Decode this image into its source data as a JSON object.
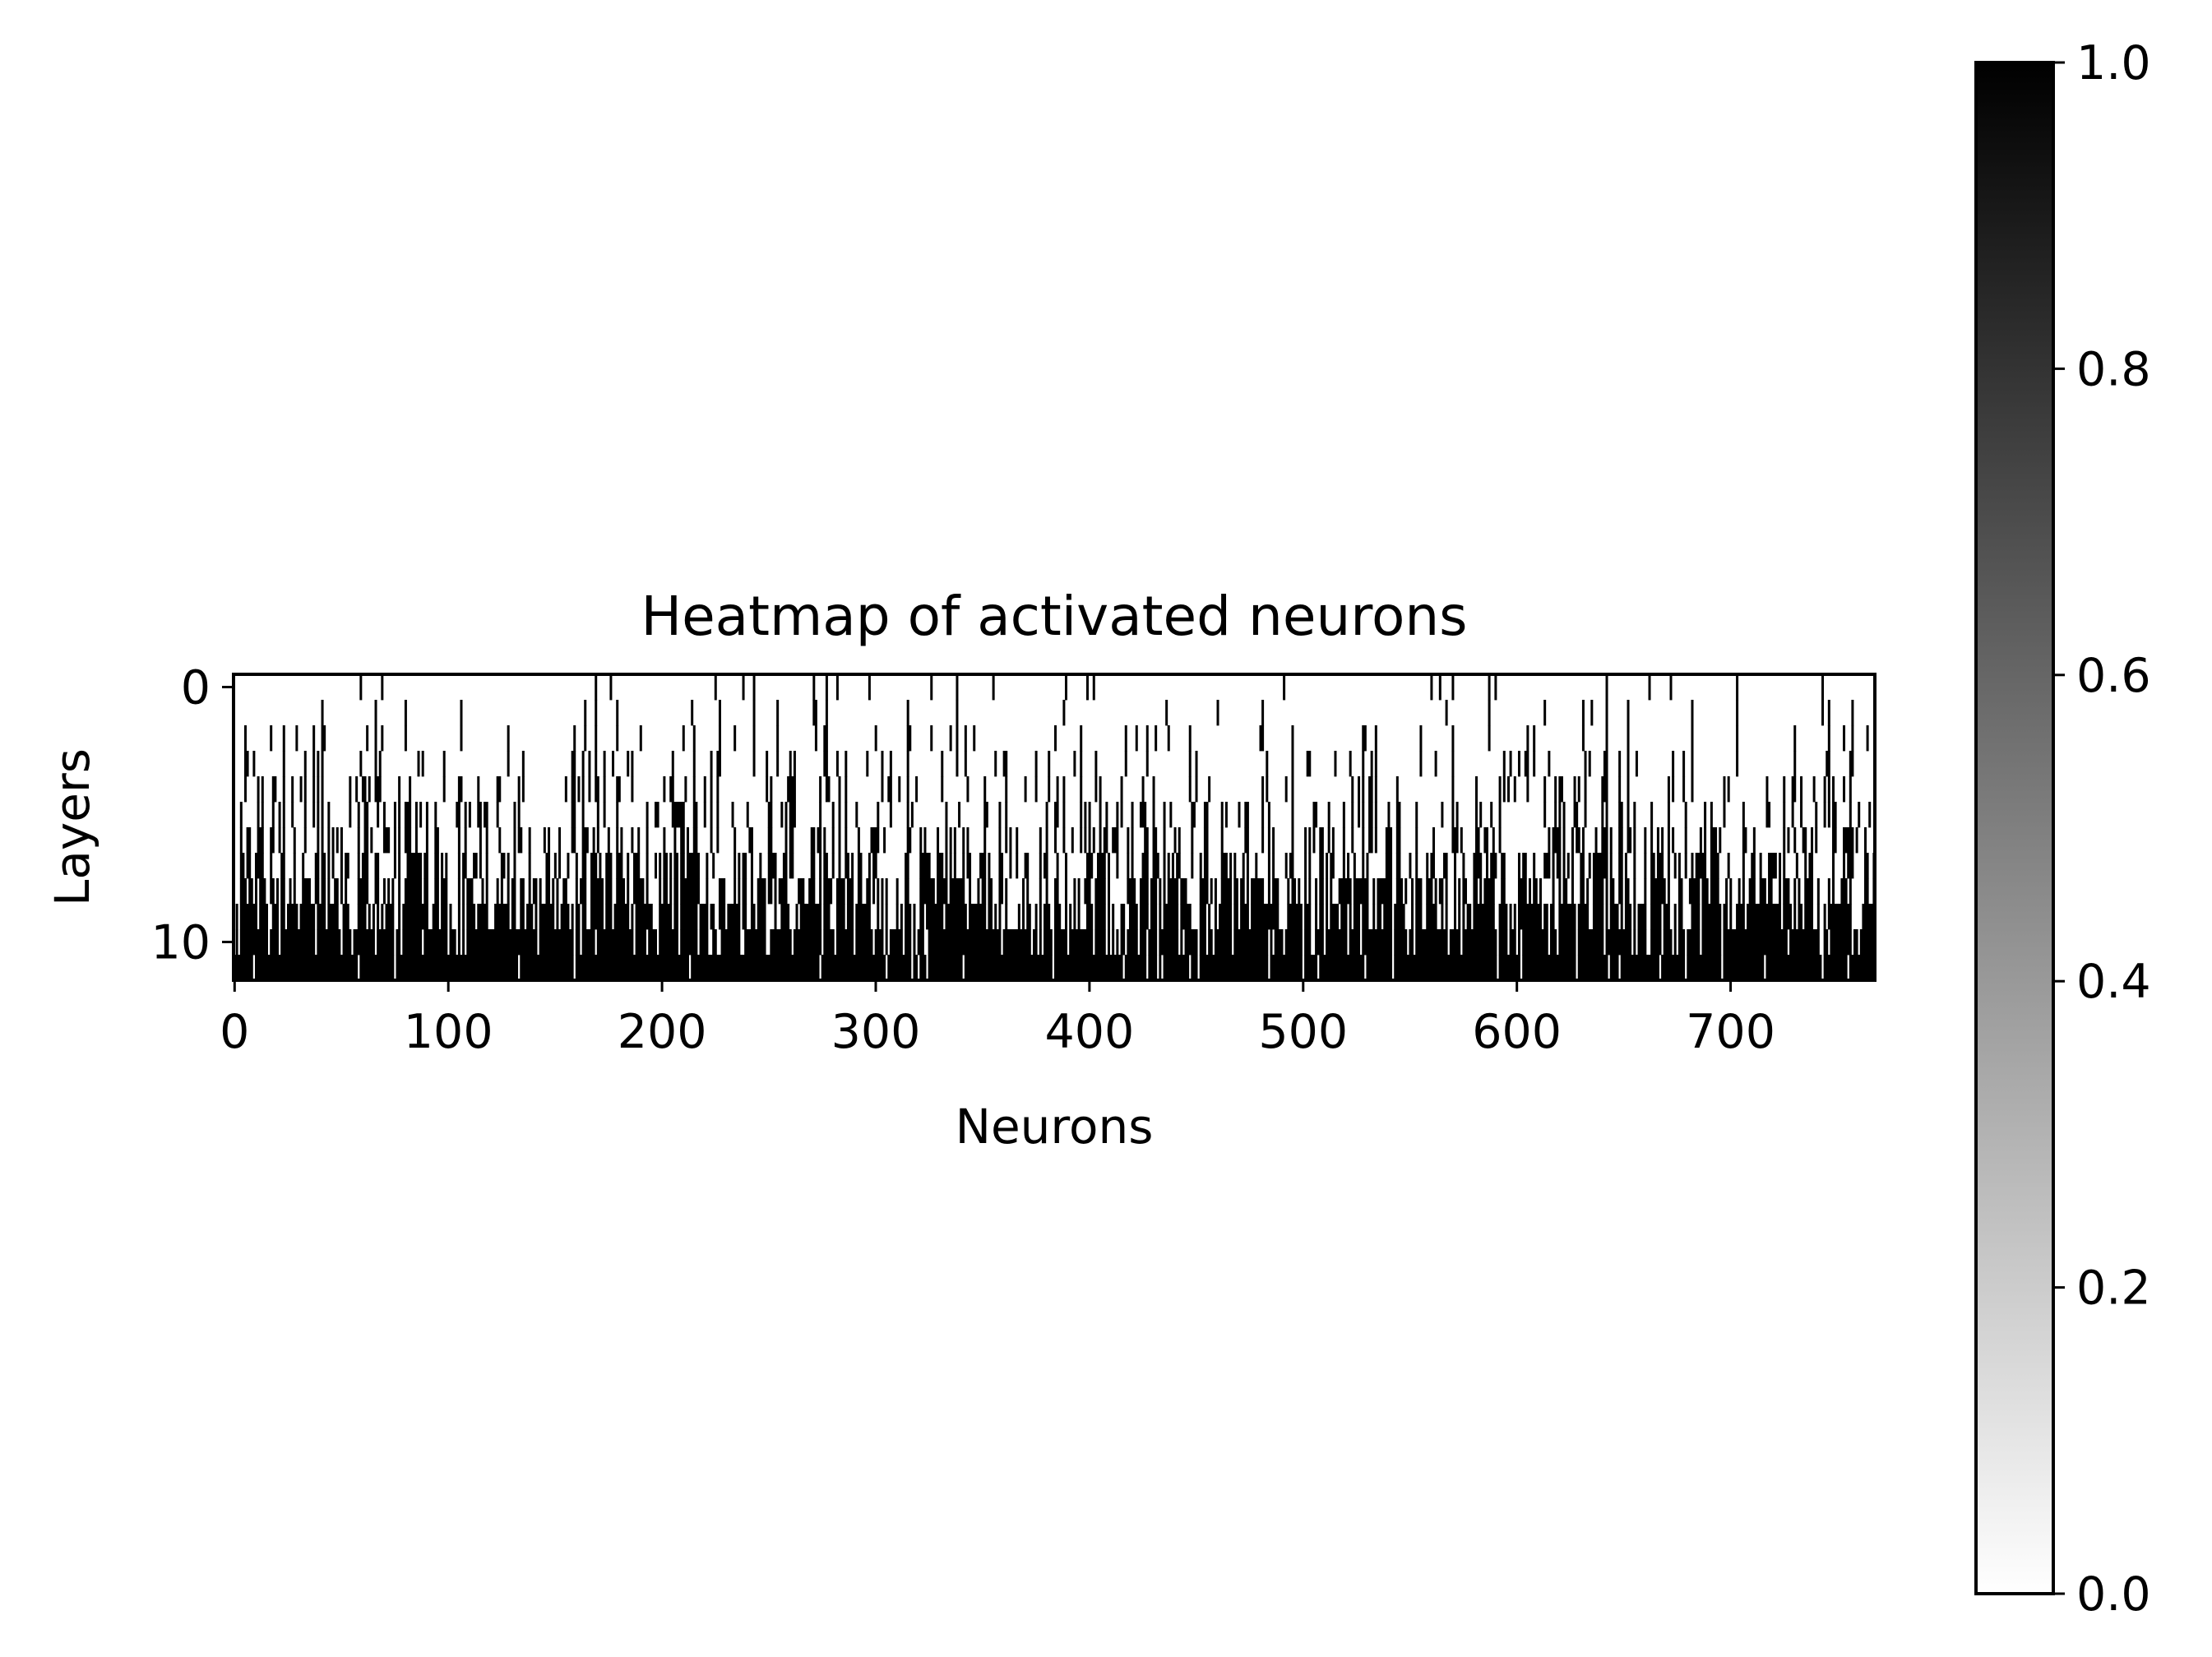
{
  "chart_data": {
    "type": "heatmap",
    "title": "Heatmap of activated neurons",
    "xlabel": "Neurons",
    "ylabel": "Layers",
    "n_rows": 12,
    "n_cols": 768,
    "xlim": [
      0,
      768
    ],
    "ylim": [
      12,
      0
    ],
    "x_ticks": [
      0,
      100,
      200,
      300,
      400,
      500,
      600,
      700
    ],
    "x_tick_labels": [
      "0",
      "100",
      "200",
      "300",
      "400",
      "500",
      "600",
      "700"
    ],
    "y_ticks": [
      0,
      10
    ],
    "y_tick_labels": [
      "0",
      "10"
    ],
    "colormap": "gray_r",
    "colorbar": {
      "range": [
        0,
        1
      ],
      "ticks": [
        0.0,
        0.2,
        0.4,
        0.6,
        0.8,
        1.0
      ],
      "tick_labels": [
        "0.0",
        "0.2",
        "0.4",
        "0.6",
        "0.8",
        "1.0"
      ],
      "color_low": "#ffffff",
      "color_high": "#000000"
    },
    "row_activation_fraction": [
      0.03,
      0.04,
      0.06,
      0.08,
      0.1,
      0.14,
      0.2,
      0.26,
      0.36,
      0.46,
      0.6,
      0.82
    ],
    "grid": false,
    "legend": "none"
  }
}
